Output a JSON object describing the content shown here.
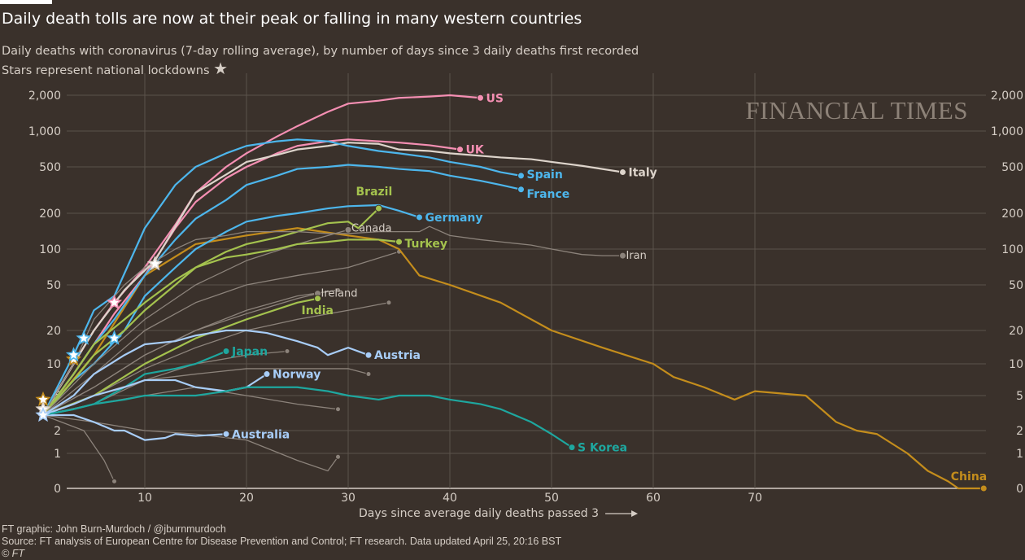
{
  "title": "Daily death tolls are now at their peak or falling in many western countries",
  "subtitle": "Daily deaths with coronavirus (7-day rolling average), by number of days since 3 daily deaths first recorded",
  "stars_note": "Stars represent national lockdowns",
  "logo": "FINANCIAL TIMES",
  "footer": {
    "credit": "FT graphic: John Burn-Murdoch / @jburnmurdoch",
    "source": "Source: FT analysis of European Centre for Disease Prevention and Control; FT research. Data updated April 25, 20:16 BST",
    "copyright": "© FT"
  },
  "chart_data": {
    "type": "line",
    "title": "Daily death tolls are now at their peak or falling in many western countries",
    "xlabel": "Days since average daily deaths passed 3",
    "ylabel": "",
    "yscale": "log (with 0 baseline)",
    "xlim": [
      0,
      93
    ],
    "ylim": [
      0,
      2000
    ],
    "x_ticks": [
      10,
      20,
      30,
      40,
      50,
      60,
      70
    ],
    "y_ticks": [
      0,
      1,
      2,
      5,
      10,
      20,
      50,
      100,
      200,
      500,
      1000,
      2000
    ],
    "y_tick_labels": [
      "0",
      "1",
      "2",
      "5",
      "10",
      "20",
      "50",
      "100",
      "200",
      "500",
      "1,000",
      "2,000"
    ],
    "grid": true,
    "colors": {
      "background": "#3a312b",
      "grid": "#5b524b",
      "pink": "#f58fb3",
      "italy": "#ddd4cb",
      "blue": "#4db6ec",
      "green": "#a4c24e",
      "teal": "#1ea79f",
      "lightblue": "#a8cdf7",
      "china": "#c48d1c",
      "grey": "#8c837b"
    },
    "series": [
      {
        "name": "",
        "color": "grey",
        "x": [
          0,
          5,
          10,
          15,
          20,
          25,
          29
        ],
        "y": [
          3,
          6,
          12,
          20,
          30,
          40,
          45
        ]
      },
      {
        "name": "",
        "color": "grey",
        "x": [
          0,
          5,
          10,
          15,
          20,
          25,
          30,
          34
        ],
        "y": [
          3,
          5,
          9,
          14,
          20,
          25,
          30,
          35
        ]
      },
      {
        "name": "",
        "color": "grey",
        "x": [
          0,
          5,
          10,
          15,
          20,
          24
        ],
        "y": [
          3,
          4,
          7,
          10,
          12,
          13
        ]
      },
      {
        "name": "",
        "color": "grey",
        "x": [
          0,
          5,
          10,
          15,
          20,
          25,
          29
        ],
        "y": [
          3,
          4,
          5,
          6,
          5,
          4,
          3.5
        ]
      },
      {
        "name": "",
        "color": "grey",
        "x": [
          0,
          4,
          6,
          7
        ],
        "y": [
          3,
          2,
          0.8,
          0.2
        ]
      },
      {
        "name": "",
        "color": "grey",
        "x": [
          0,
          5,
          10,
          15,
          20,
          25,
          28,
          29
        ],
        "y": [
          3,
          2.5,
          2,
          1.8,
          1.5,
          0.8,
          0.5,
          0.9
        ]
      },
      {
        "name": "",
        "color": "grey",
        "x": [
          0,
          5,
          10,
          15,
          20,
          25,
          30,
          32
        ],
        "y": [
          3,
          5,
          7,
          8,
          9,
          9,
          9,
          8
        ]
      },
      {
        "name": "",
        "color": "grey",
        "x": [
          0,
          5,
          10,
          15,
          20,
          25,
          30,
          35
        ],
        "y": [
          3,
          8,
          20,
          35,
          50,
          60,
          70,
          95
        ]
      },
      {
        "name": "China",
        "color": "china",
        "x": [
          0,
          5,
          10,
          15,
          20,
          25,
          30,
          33,
          35,
          37,
          40,
          45,
          50,
          55,
          60,
          62,
          65,
          68,
          70,
          75,
          78,
          80,
          82,
          85,
          87,
          89,
          90,
          92.5
        ],
        "y": [
          3,
          12,
          60,
          110,
          130,
          150,
          130,
          120,
          100,
          60,
          50,
          35,
          20,
          14,
          10,
          7.5,
          6,
          4.5,
          5.5,
          5,
          2.5,
          2,
          1.8,
          1,
          0.5,
          0.2,
          0,
          0
        ]
      },
      {
        "name": "US",
        "color": "pink",
        "x": [
          0,
          3,
          5,
          7,
          10,
          13,
          15,
          18,
          20,
          23,
          25,
          28,
          30,
          33,
          35,
          38,
          40,
          43
        ],
        "y": [
          3,
          10,
          20,
          35,
          70,
          160,
          300,
          500,
          650,
          900,
          1100,
          1450,
          1700,
          1800,
          1900,
          1950,
          2000,
          1900
        ]
      },
      {
        "name": "UK",
        "color": "pink",
        "x": [
          0,
          3,
          5,
          7,
          10,
          13,
          15,
          18,
          20,
          23,
          25,
          28,
          30,
          33,
          35,
          38,
          41
        ],
        "y": [
          3,
          8,
          15,
          28,
          60,
          150,
          250,
          400,
          500,
          650,
          750,
          820,
          850,
          820,
          800,
          760,
          700
        ]
      },
      {
        "name": "Italy",
        "color": "italy",
        "x": [
          0,
          3,
          5,
          8,
          11,
          15,
          18,
          20,
          23,
          25,
          28,
          30,
          33,
          35,
          38,
          40,
          43,
          45,
          48,
          50,
          53,
          57
        ],
        "y": [
          3,
          10,
          20,
          45,
          80,
          300,
          430,
          550,
          630,
          700,
          750,
          800,
          780,
          700,
          680,
          650,
          620,
          600,
          580,
          550,
          510,
          450
        ]
      },
      {
        "name": "Spain",
        "color": "blue",
        "x": [
          0,
          3,
          5,
          7,
          10,
          13,
          15,
          18,
          20,
          23,
          25,
          28,
          30,
          33,
          35,
          38,
          40,
          43,
          45,
          47
        ],
        "y": [
          3,
          12,
          30,
          40,
          150,
          350,
          500,
          650,
          750,
          820,
          850,
          820,
          750,
          680,
          650,
          600,
          550,
          500,
          450,
          420
        ]
      },
      {
        "name": "France",
        "color": "blue",
        "x": [
          0,
          3,
          5,
          7,
          10,
          13,
          15,
          18,
          20,
          23,
          25,
          28,
          30,
          33,
          35,
          38,
          40,
          43,
          45,
          47
        ],
        "y": [
          3,
          8,
          15,
          25,
          60,
          120,
          180,
          260,
          350,
          420,
          480,
          500,
          520,
          500,
          480,
          460,
          420,
          380,
          350,
          320
        ]
      },
      {
        "name": "Germany",
        "color": "blue",
        "x": [
          0,
          3,
          5,
          8,
          10,
          13,
          15,
          18,
          20,
          23,
          25,
          28,
          30,
          33,
          35,
          37
        ],
        "y": [
          3,
          7,
          10,
          20,
          40,
          70,
          100,
          140,
          170,
          190,
          200,
          220,
          230,
          235,
          210,
          185
        ]
      },
      {
        "name": "Brazil",
        "color": "green",
        "x": [
          0,
          3,
          5,
          8,
          10,
          13,
          15,
          18,
          20,
          23,
          25,
          28,
          30,
          31,
          33
        ],
        "y": [
          3,
          7,
          12,
          20,
          30,
          50,
          70,
          95,
          110,
          125,
          140,
          165,
          170,
          150,
          220
        ]
      },
      {
        "name": "Canada",
        "color": "grey",
        "x": [
          0,
          5,
          10,
          15,
          20,
          25,
          30
        ],
        "y": [
          3,
          10,
          25,
          50,
          80,
          110,
          145
        ]
      },
      {
        "name": "Turkey",
        "color": "green",
        "x": [
          0,
          3,
          5,
          8,
          10,
          13,
          15,
          18,
          20,
          23,
          25,
          28,
          30,
          33,
          35
        ],
        "y": [
          3,
          8,
          15,
          25,
          35,
          55,
          70,
          85,
          90,
          100,
          110,
          115,
          120,
          120,
          115
        ]
      },
      {
        "name": "Iran",
        "color": "grey",
        "x": [
          0,
          3,
          5,
          8,
          10,
          13,
          15,
          18,
          20,
          23,
          25,
          28,
          30,
          33,
          35,
          37,
          38,
          40,
          43,
          45,
          48,
          50,
          53,
          55,
          57
        ],
        "y": [
          3,
          10,
          25,
          50,
          70,
          100,
          120,
          130,
          140,
          140,
          140,
          135,
          135,
          140,
          140,
          140,
          155,
          130,
          120,
          115,
          108,
          100,
          90,
          88,
          88
        ]
      },
      {
        "name": "Ireland",
        "color": "grey",
        "x": [
          0,
          5,
          10,
          15,
          20,
          25,
          27
        ],
        "y": [
          3,
          6,
          12,
          20,
          28,
          38,
          42
        ]
      },
      {
        "name": "India",
        "color": "green",
        "x": [
          0,
          5,
          10,
          15,
          20,
          25,
          27
        ],
        "y": [
          3,
          5,
          10,
          17,
          25,
          35,
          38
        ]
      },
      {
        "name": "Japan",
        "color": "teal",
        "x": [
          0,
          3,
          5,
          8,
          10,
          13,
          15,
          18
        ],
        "y": [
          3,
          3.5,
          4,
          6,
          8,
          9,
          10,
          13
        ]
      },
      {
        "name": "Austria",
        "color": "lightblue",
        "x": [
          0,
          3,
          5,
          8,
          10,
          13,
          15,
          18,
          20,
          22,
          25,
          27,
          28,
          30,
          32
        ],
        "y": [
          3,
          5,
          8,
          12,
          15,
          16,
          18,
          20,
          20,
          19,
          16,
          14,
          12,
          14,
          12
        ]
      },
      {
        "name": "Norway",
        "color": "lightblue",
        "x": [
          0,
          3,
          5,
          8,
          10,
          13,
          15,
          18,
          20,
          22
        ],
        "y": [
          3,
          4,
          5,
          6,
          7,
          7,
          6,
          5.5,
          6,
          8
        ]
      },
      {
        "name": "Australia",
        "color": "lightblue",
        "x": [
          0,
          3,
          5,
          7,
          8,
          10,
          12,
          13,
          15,
          18
        ],
        "y": [
          3,
          3,
          2.5,
          2,
          2,
          1.5,
          1.6,
          1.8,
          1.7,
          1.8
        ]
      },
      {
        "name": "S Korea",
        "color": "teal",
        "x": [
          0,
          3,
          5,
          8,
          10,
          13,
          15,
          18,
          20,
          23,
          25,
          28,
          30,
          33,
          35,
          38,
          40,
          43,
          45,
          48,
          50,
          52
        ],
        "y": [
          3,
          3.5,
          4,
          4.5,
          5,
          5,
          5,
          5.5,
          6,
          6,
          6,
          5.5,
          5,
          4.5,
          5,
          5,
          4.5,
          4,
          3.5,
          2.5,
          1.8,
          1.2
        ]
      }
    ],
    "lockdown_stars": [
      {
        "x": 0,
        "y": 4.5,
        "color": "china"
      },
      {
        "x": 0,
        "y": 3.5,
        "color": "italy"
      },
      {
        "x": 0,
        "y": 3,
        "color": "lightblue"
      },
      {
        "x": 3,
        "y": 11,
        "color": "china"
      },
      {
        "x": 3,
        "y": 12,
        "color": "blue"
      },
      {
        "x": 4,
        "y": 17,
        "color": "blue"
      },
      {
        "x": 7,
        "y": 35,
        "color": "pink"
      },
      {
        "x": 7,
        "y": 17,
        "color": "blue"
      },
      {
        "x": 11,
        "y": 75,
        "color": "italy"
      }
    ]
  }
}
